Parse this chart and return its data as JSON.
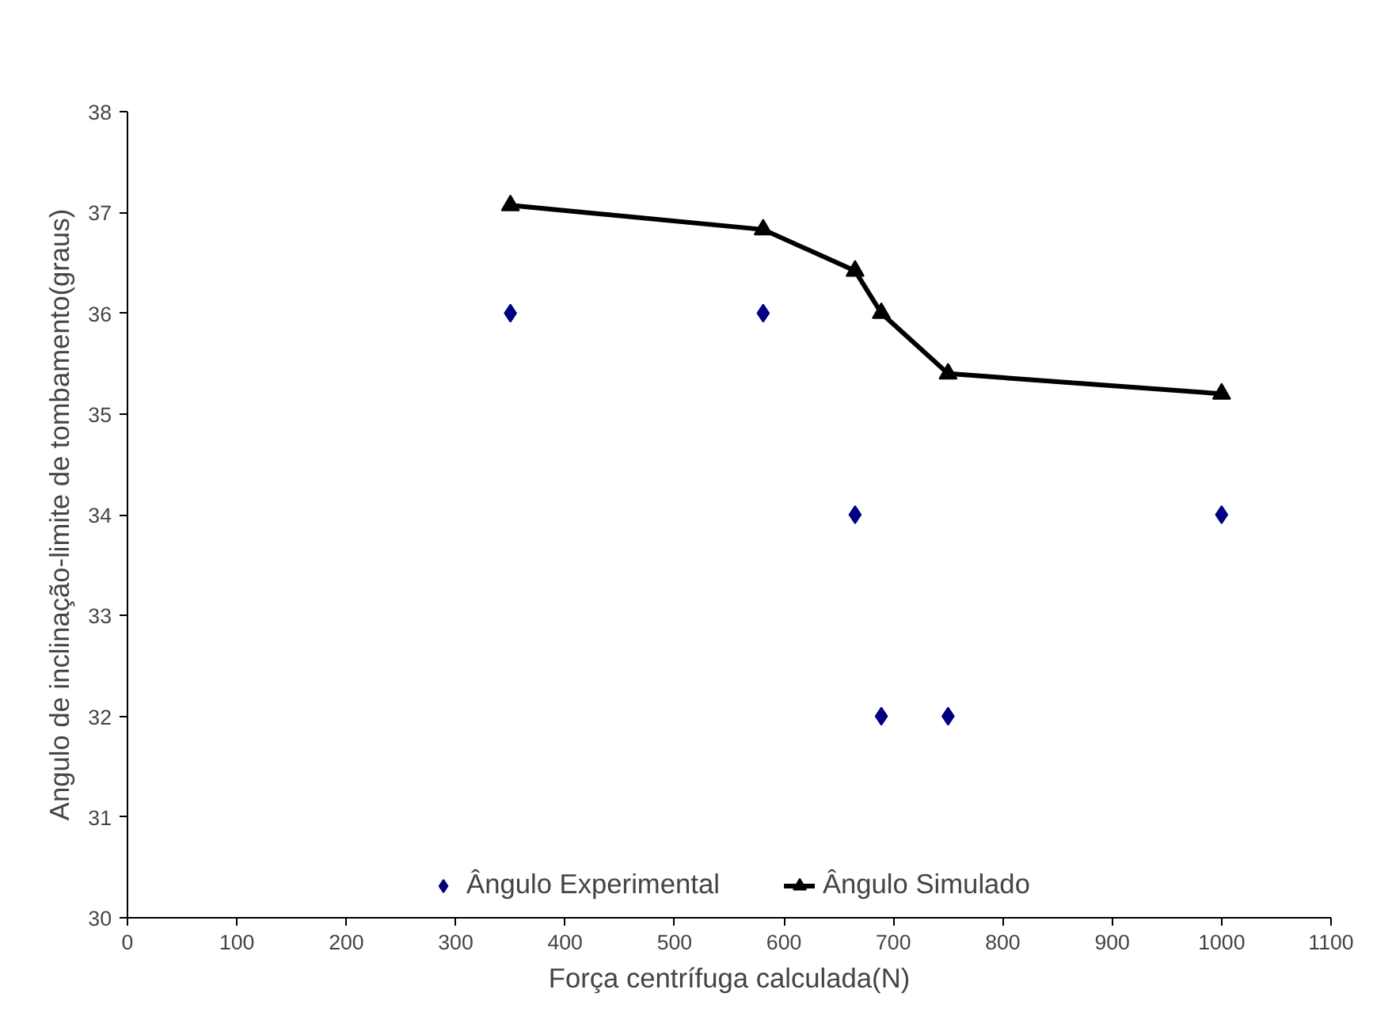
{
  "chart_data": {
    "type": "scatter",
    "xlabel": "Força centrífuga calculada(N)",
    "ylabel": "Angulo de inclinação-limite de tombamento(graus)",
    "series": [
      {
        "name": "Ângulo Experimental",
        "marker": "diamond",
        "color": "#000080",
        "x": [
          350,
          581,
          665,
          689,
          750,
          1000
        ],
        "values": [
          36,
          36,
          34,
          32,
          32,
          34
        ]
      },
      {
        "name": "Ângulo Simulado",
        "type": "line",
        "marker": "triangle",
        "color": "#000000",
        "x": [
          350,
          581,
          665,
          689,
          750,
          1000
        ],
        "values": [
          37.07,
          36.83,
          36.42,
          36.0,
          35.4,
          35.2
        ]
      }
    ],
    "xlim": [
      0,
      1100
    ],
    "xticks": [
      0,
      100,
      200,
      300,
      400,
      500,
      600,
      700,
      800,
      900,
      1000,
      1100
    ],
    "ylim": [
      30,
      38
    ],
    "yticks": [
      30,
      31,
      32,
      33,
      34,
      35,
      36,
      37,
      38
    ],
    "grid": false,
    "legend": "bottom"
  }
}
